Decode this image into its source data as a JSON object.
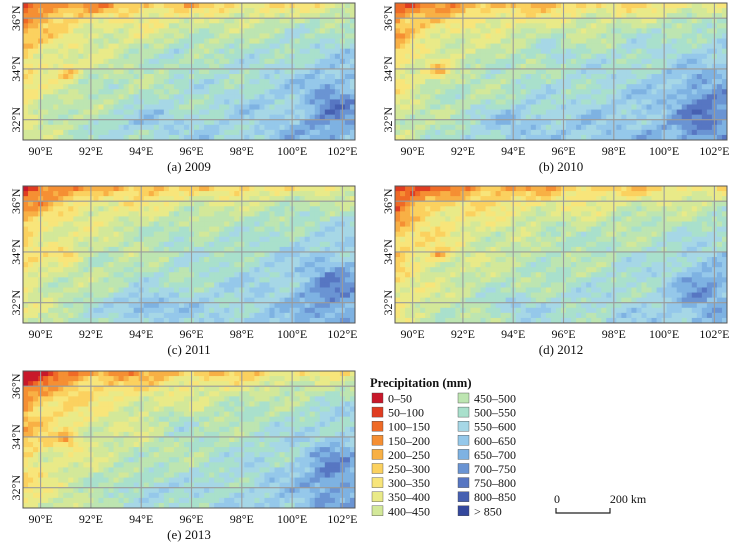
{
  "panels": [
    {
      "caption": "(a) 2009",
      "year": "2009"
    },
    {
      "caption": "(b) 2010",
      "year": "2010"
    },
    {
      "caption": "(c) 2011",
      "year": "2011"
    },
    {
      "caption": "(d) 2012",
      "year": "2012"
    },
    {
      "caption": "(e) 2013",
      "year": "2013"
    }
  ],
  "axes": {
    "lon_ticks": [
      "90°E",
      "92°E",
      "94°E",
      "96°E",
      "98°E",
      "100°E",
      "102°E"
    ],
    "lat_ticks": [
      "36°N",
      "34°N",
      "32°N"
    ],
    "lon_values": [
      90,
      92,
      94,
      96,
      98,
      100,
      102
    ],
    "lat_values": [
      36,
      34,
      32
    ],
    "lon_range": [
      89.3,
      102.5
    ],
    "lat_range": [
      31.2,
      36.6
    ]
  },
  "legend": {
    "title": "Precipitation (mm)",
    "classes": [
      {
        "label": "0–50",
        "color": "#c8182a"
      },
      {
        "label": "50–100",
        "color": "#e03c21"
      },
      {
        "label": "100–150",
        "color": "#ef6a26"
      },
      {
        "label": "150–200",
        "color": "#f58f33"
      },
      {
        "label": "200–250",
        "color": "#f8b045"
      },
      {
        "label": "250–300",
        "color": "#fbd15f"
      },
      {
        "label": "300–350",
        "color": "#f8e57a"
      },
      {
        "label": "350–400",
        "color": "#e9ea88"
      },
      {
        "label": "400–450",
        "color": "#d3e899"
      },
      {
        "label": "450–500",
        "color": "#bde5b1"
      },
      {
        "label": "500–550",
        "color": "#a9e0cc"
      },
      {
        "label": "550–600",
        "color": "#a6d7e6"
      },
      {
        "label": "600–650",
        "color": "#95c8ea"
      },
      {
        "label": "650–700",
        "color": "#7eb2e2"
      },
      {
        "label": "700–750",
        "color": "#6a94d3"
      },
      {
        "label": "750–800",
        "color": "#5776c2"
      },
      {
        "label": "800–850",
        "color": "#4660b1"
      },
      {
        "label": "> 850",
        "color": "#34489d"
      }
    ]
  },
  "scale_bar": {
    "start_label": "0",
    "end_label": "200 km"
  }
}
